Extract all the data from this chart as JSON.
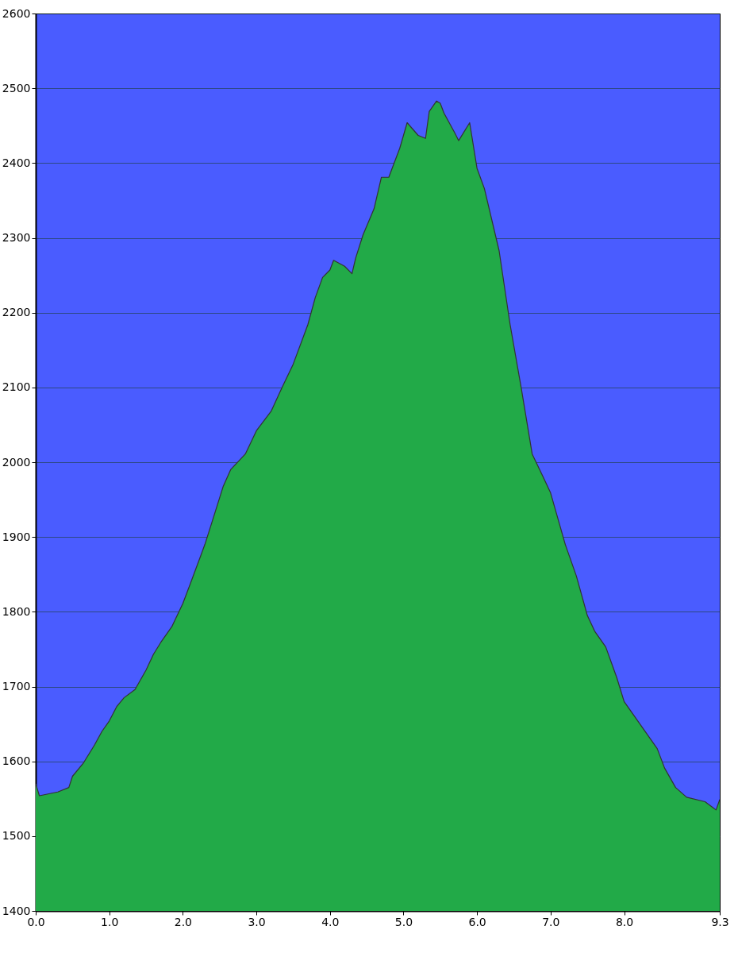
{
  "chart_data": {
    "type": "area",
    "x": [
      0,
      0.05,
      0.3,
      0.45,
      0.5,
      0.65,
      0.8,
      0.9,
      1.0,
      1.1,
      1.2,
      1.35,
      1.5,
      1.6,
      1.7,
      1.85,
      2.0,
      2.1,
      2.3,
      2.4,
      2.55,
      2.65,
      2.85,
      3.0,
      3.2,
      3.35,
      3.5,
      3.7,
      3.8,
      3.9,
      4.0,
      4.05,
      4.2,
      4.3,
      4.35,
      4.45,
      4.6,
      4.7,
      4.8,
      4.95,
      5.05,
      5.2,
      5.3,
      5.35,
      5.45,
      5.5,
      5.55,
      5.7,
      5.75,
      5.9,
      6.0,
      6.1,
      6.3,
      6.45,
      6.6,
      6.75,
      6.9,
      7.0,
      7.2,
      7.35,
      7.5,
      7.6,
      7.75,
      7.9,
      8.0,
      8.15,
      8.3,
      8.45,
      8.55,
      8.7,
      8.85,
      9.1,
      9.25,
      9.3
    ],
    "series": [
      {
        "color": "#22aa48",
        "values": [
          1570,
          1554,
          1559,
          1565,
          1580,
          1598,
          1622,
          1640,
          1654,
          1673,
          1685,
          1696,
          1722,
          1743,
          1759,
          1780,
          1811,
          1837,
          1890,
          1921,
          1968,
          1990,
          2011,
          2042,
          2068,
          2100,
          2131,
          2184,
          2220,
          2247,
          2257,
          2270,
          2262,
          2252,
          2273,
          2304,
          2339,
          2381,
          2381,
          2420,
          2454,
          2437,
          2433,
          2469,
          2483,
          2480,
          2467,
          2440,
          2430,
          2454,
          2393,
          2366,
          2283,
          2184,
          2100,
          2011,
          1980,
          1959,
          1890,
          1848,
          1795,
          1774,
          1753,
          1712,
          1680,
          1659,
          1638,
          1617,
          1591,
          1565,
          1552,
          1546,
          1535,
          1549
        ]
      }
    ],
    "xlim": [
      0,
      9.3
    ],
    "xticks": [
      {
        "value": 0,
        "label": "0.0"
      },
      {
        "value": 1,
        "label": "1.0"
      },
      {
        "value": 2,
        "label": "2.0"
      },
      {
        "value": 3,
        "label": "3.0"
      },
      {
        "value": 4,
        "label": "4.0"
      },
      {
        "value": 5,
        "label": "5.0"
      },
      {
        "value": 6,
        "label": "6.0"
      },
      {
        "value": 7,
        "label": "7.0"
      },
      {
        "value": 8,
        "label": "8.0"
      },
      {
        "value": 9.3,
        "label": "9.3"
      }
    ],
    "ylim": [
      1400,
      2600
    ],
    "yticks": [
      1400,
      1500,
      1600,
      1700,
      1800,
      1900,
      2000,
      2100,
      2200,
      2300,
      2400,
      2500,
      2600
    ],
    "grid": "y"
  }
}
